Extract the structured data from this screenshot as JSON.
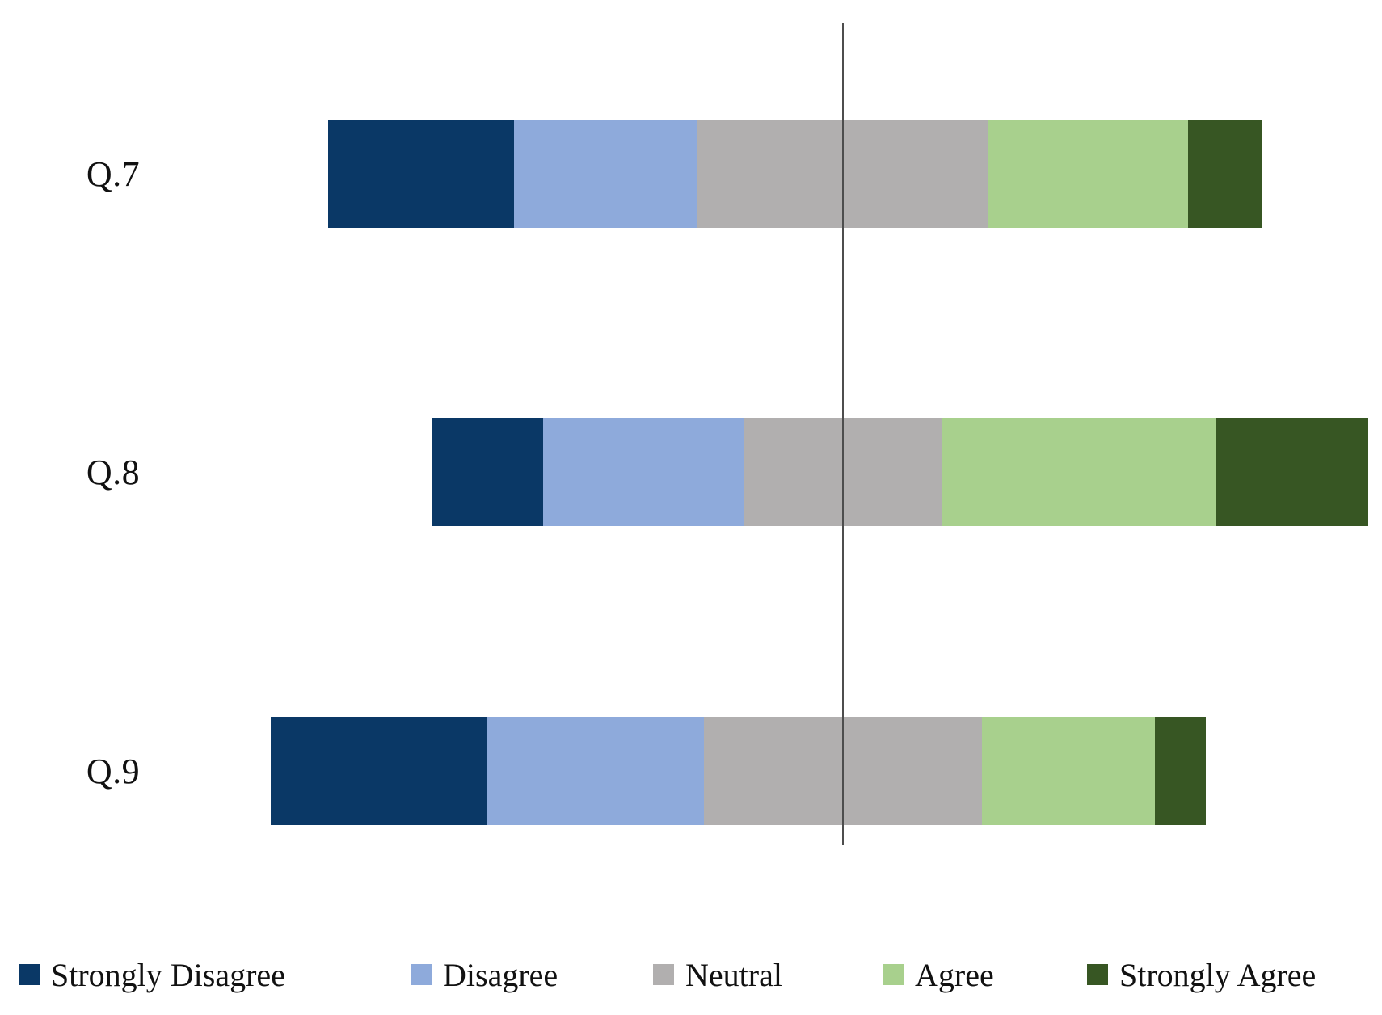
{
  "chart_data": {
    "type": "bar",
    "variant": "diverging-stacked-horizontal-likert",
    "title": "",
    "xlabel": "",
    "ylabel": "",
    "categories": [
      "Q.7",
      "Q.8",
      "Q.9"
    ],
    "series": [
      {
        "name": "Strongly Disagree",
        "color": "#0A3866",
        "values": [
          19.9,
          11.9,
          23.0
        ]
      },
      {
        "name": "Disagree",
        "color": "#8EAADB",
        "values": [
          19.6,
          21.4,
          23.3
        ]
      },
      {
        "name": "Neutral",
        "color": "#B1AFAF",
        "values": [
          31.1,
          21.3,
          29.7
        ]
      },
      {
        "name": "Agree",
        "color": "#A8D08D",
        "values": [
          21.4,
          29.3,
          18.5
        ]
      },
      {
        "name": "Strongly Agree",
        "color": "#375623",
        "values": [
          7.9,
          16.2,
          5.5
        ]
      }
    ],
    "units": "percent",
    "alignment": "neutral-centered",
    "axes": {
      "centerline": true,
      "tick_labels_visible": false,
      "grid": false
    },
    "legend": {
      "position": "bottom",
      "entries": [
        "Strongly Disagree",
        "Disagree",
        "Neutral",
        "Agree",
        "Strongly Agree"
      ]
    }
  }
}
